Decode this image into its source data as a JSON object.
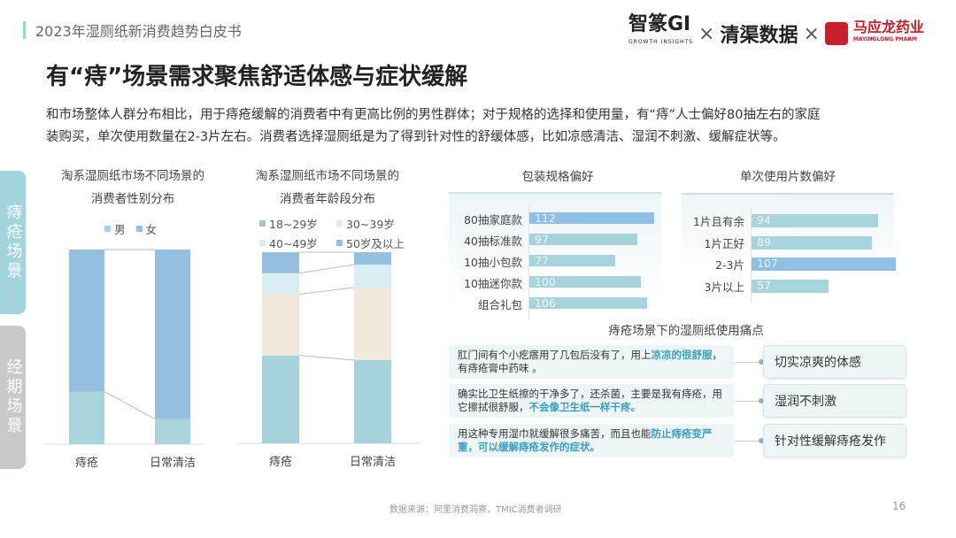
{
  "header": {
    "doc_title": "2023年湿厕纸新消费趋势白皮书",
    "logos": [
      "智篆GI",
      "GROWTH INSIGHTS",
      "×",
      "清渠数据",
      "×",
      "马应龙药业",
      "MAYINGLONG PHARM"
    ]
  },
  "title": "有“痔”场景需求聚焦舒适体感与症状缓解",
  "paragraph": [
    "和市场整体人群分布相比，用于痔疮缓解的消费者中有更高比例的男性群体；对于规格的选择和使用量，有“痔”人士偏好80抽左右的家庭",
    "装购买，单次使用数量在2-3片左右。消费者选择湿厕纸是为了得到针对性的舒缓体感，比如凉感清洁、湿润不刺激、缓解症状等。"
  ],
  "side_tabs": [
    {
      "label": "痔疮场景",
      "active": true,
      "color": "#a3d4dc"
    },
    {
      "label": "经期场景",
      "active": false,
      "color": "#c9c9c9"
    }
  ],
  "chart_data": [
    {
      "type": "bar",
      "stacked": true,
      "normalized": true,
      "title": [
        "淘系湿厕纸市场不同场景的",
        "消费者性别分布"
      ],
      "categories": [
        "痔疮",
        "日常清洁"
      ],
      "legend": "top",
      "series": [
        {
          "name": "男",
          "values": [
            27,
            13
          ],
          "color": "#a8d4dc"
        },
        {
          "name": "女",
          "values": [
            73,
            87
          ],
          "color": "#94bfe0"
        }
      ]
    },
    {
      "type": "bar",
      "stacked": true,
      "normalized": true,
      "title": [
        "淘系湿厕纸市场不同场景的",
        "消费者年龄段分布"
      ],
      "categories": [
        "痔疮",
        "日常清洁"
      ],
      "legend": "top",
      "series": [
        {
          "name": "18~29岁",
          "values": [
            46,
            43.5
          ],
          "color": "#a5d2dc"
        },
        {
          "name": "30~39岁",
          "values": [
            32,
            38
          ],
          "color": "#f0e9dc"
        },
        {
          "name": "40~49岁",
          "values": [
            11,
            12
          ],
          "color": "#d8eef1"
        },
        {
          "name": "50岁及以上",
          "values": [
            11,
            6.5
          ],
          "color": "#94bfe0"
        }
      ]
    },
    {
      "type": "bar",
      "orientation": "horizontal",
      "title": "包装规格偏好",
      "categories": [
        "80抽家庭款",
        "40抽标准款",
        "10抽小包款",
        "10抽迷你款",
        "组合礼包"
      ],
      "values": [
        112,
        97,
        77,
        100,
        106
      ],
      "colors": [
        "#8fbfe3",
        "#a6d3dc",
        "#a6d3dc",
        "#a6d3dc",
        "#a6d3dc"
      ]
    },
    {
      "type": "bar",
      "orientation": "horizontal",
      "title": "单次使用片数偏好",
      "categories": [
        "1片且有余",
        "1片正好",
        "2-3片",
        "3片以上"
      ],
      "values": [
        94,
        89,
        107,
        57
      ],
      "colors": [
        "#a6d3dc",
        "#a6d3dc",
        "#8fbfe3",
        "#a6d3dc"
      ]
    }
  ],
  "pain_points": {
    "title": "痔疮场景下的湿厕纸使用痛点",
    "items": [
      {
        "quote_plain": "肛门间有个小疙瘩用了几包后没有了，用上",
        "quote_highlight": "凉凉的很舒服",
        "quote_tail": "，有痔疮膏中药味 。",
        "tag": "切实凉爽的体感"
      },
      {
        "quote_plain": "确实比卫生纸擦的干净多了，还杀菌，主要是我有痔疮，用它擦拭很舒服，",
        "quote_highlight": "不会像卫生纸一样干疼",
        "quote_tail": "。",
        "tag": "湿润不刺激"
      },
      {
        "quote_plain": "用这种专用湿巾就缓解很多痛苦，而且也能",
        "quote_highlight": "防止痔疮变严重，可以缓解痔疮发作的症状",
        "quote_tail": "。",
        "tag": "针对性缓解痔疮发作"
      }
    ]
  },
  "footer": {
    "source": "数据来源：阿里消费洞察，TMIC消费者调研",
    "page_number": "16"
  }
}
